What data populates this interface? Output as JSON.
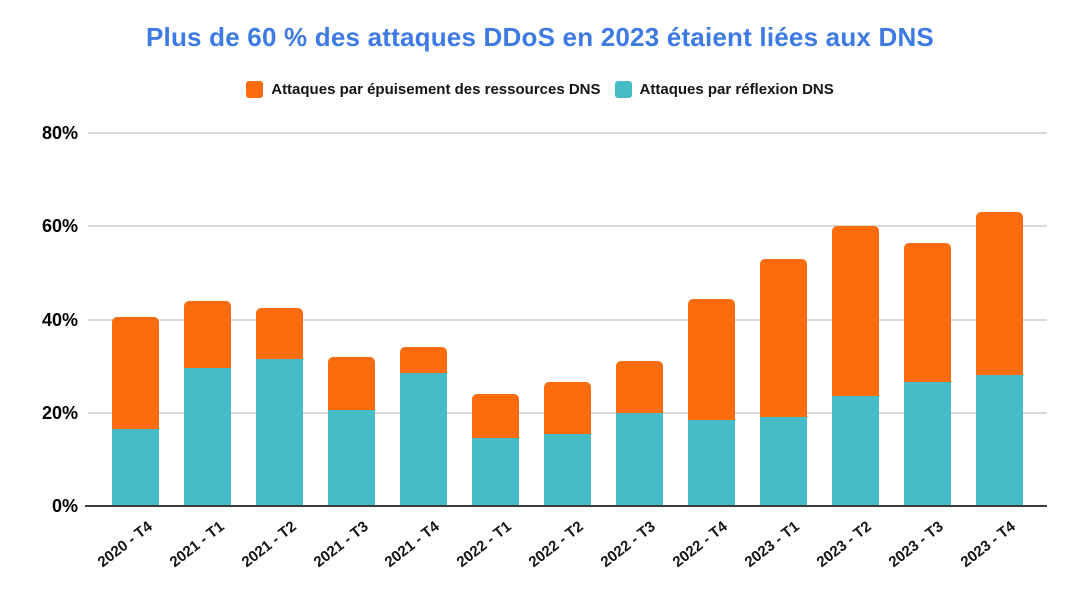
{
  "chart_data": {
    "type": "bar",
    "stacked": true,
    "title": "Plus de 60 % des attaques DDoS en 2023 étaient liées aux DNS",
    "title_color": "#3d7ae4",
    "categories": [
      "2020 - T4",
      "2021 - T1",
      "2021 - T2",
      "2021 - T3",
      "2021 - T4",
      "2022 - T1",
      "2022 - T2",
      "2022 - T3",
      "2022 - T4",
      "2023 - T1",
      "2023 - T2",
      "2023 - T3",
      "2023 - T4"
    ],
    "series": [
      {
        "name": "Attaques par épuisement des ressources DNS",
        "color": "#fa6c0c",
        "stack_position": "top",
        "values": [
          24,
          14.5,
          11,
          11.5,
          5.5,
          9.5,
          11,
          11,
          26,
          34,
          36.5,
          30,
          35
        ]
      },
      {
        "name": "Attaques par réflexion DNS",
        "color": "#46bdc6",
        "stack_position": "bottom",
        "values": [
          16.5,
          29.5,
          31.5,
          20.5,
          28.5,
          14.5,
          15.5,
          20,
          18.5,
          19,
          23.5,
          26.5,
          28
        ]
      }
    ],
    "stack_totals": [
      40.5,
      44,
      42.5,
      32,
      34,
      24,
      26.5,
      31,
      44.5,
      53,
      60,
      56.5,
      63
    ],
    "ylabel": "",
    "xlabel": "",
    "unit": "%",
    "ylim": [
      0,
      80
    ],
    "y_ticks": [
      "0%",
      "20%",
      "40%",
      "60%",
      "80%"
    ],
    "y_tick_values": [
      0,
      20,
      40,
      60,
      80
    ],
    "grid": true,
    "gridline_color": "#d9d9d9",
    "axis_color": "#3c3c3c",
    "legend_position": "top",
    "x_label_rotation_deg": -38
  }
}
